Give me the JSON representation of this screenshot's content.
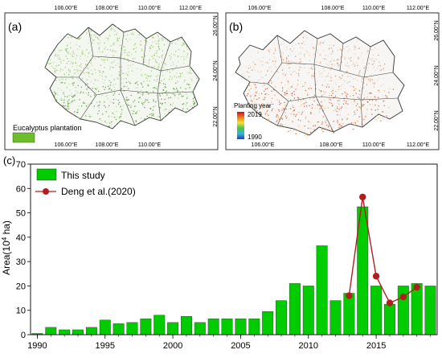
{
  "panel_a": {
    "label": "(a)",
    "lon_ticks": [
      "106.00°E",
      "108.00°E",
      "110.00°E",
      "112.00°E"
    ],
    "lat_ticks": [
      "26.00°N",
      "24.00°N",
      "22.00°N"
    ],
    "legend_label": "Eucalyptus plantation",
    "legend_color": "#6cbf2a"
  },
  "panel_b": {
    "label": "(b)",
    "lon_ticks": [
      "106.00°E",
      "108.00°E",
      "110.00°E",
      "112.00°E"
    ],
    "lat_ticks": [
      "26.00°N",
      "24.00°N",
      "22.00°N"
    ],
    "legend_title": "Planting year",
    "legend_max": "2019",
    "legend_min": "1990"
  },
  "chart_data": {
    "label": "(c)",
    "type": "bar",
    "ylabel_main": "Area(10",
    "ylabel_exp": "4",
    "ylabel_tail": " ha)",
    "xlim": [
      1989.5,
      2019.5
    ],
    "ylim": [
      0,
      70
    ],
    "yticks": [
      0,
      10,
      20,
      30,
      40,
      50,
      60,
      70
    ],
    "xticks": [
      1990,
      1995,
      2000,
      2005,
      2010,
      2015
    ],
    "grid": false,
    "legend_position": "top-left",
    "series": [
      {
        "name": "This study",
        "type": "bar",
        "color": "#00cc00",
        "x": [
          1990,
          1991,
          1992,
          1993,
          1994,
          1995,
          1996,
          1997,
          1998,
          1999,
          2000,
          2001,
          2002,
          2003,
          2004,
          2005,
          2006,
          2007,
          2008,
          2009,
          2010,
          2011,
          2012,
          2013,
          2014,
          2015,
          2016,
          2017,
          2018,
          2019
        ],
        "values": [
          0.5,
          3,
          2,
          2,
          3,
          6,
          4.5,
          5,
          6.5,
          8,
          5,
          7.5,
          5,
          6.5,
          6.5,
          6.5,
          6.5,
          9.5,
          14,
          21,
          20,
          36.5,
          14,
          17,
          52.5,
          20,
          12.5,
          20,
          21,
          20
        ]
      },
      {
        "name": "Deng et al.(2020)",
        "type": "line",
        "color": "#b01e1e",
        "x": [
          2013,
          2014,
          2015,
          2016,
          2017,
          2018
        ],
        "values": [
          16,
          56.5,
          24,
          13,
          15.5,
          19.5
        ]
      }
    ]
  }
}
